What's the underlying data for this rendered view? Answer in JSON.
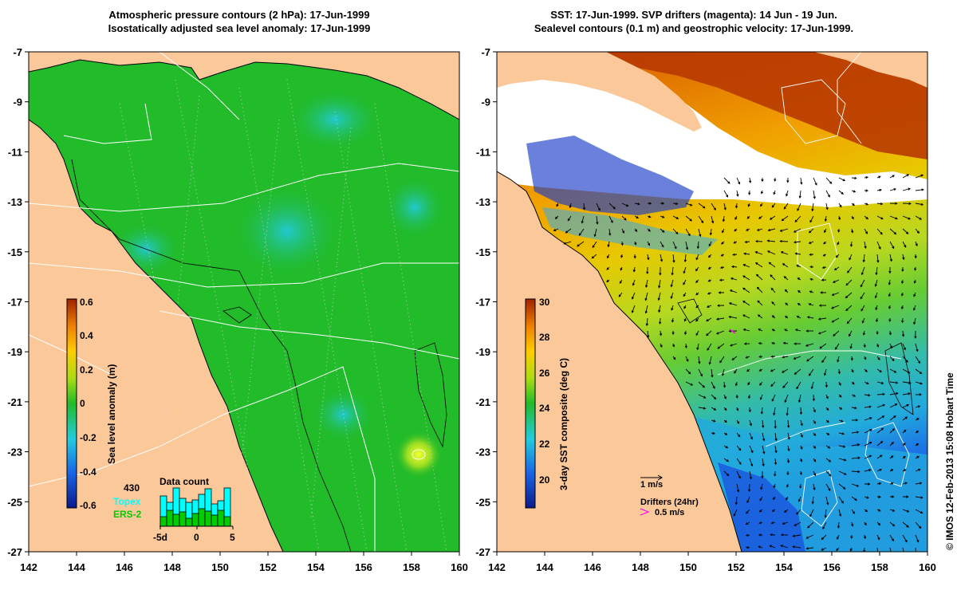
{
  "left_panel": {
    "title_line1": "Atmospheric pressure contours (2 hPa): 17-Jun-1999",
    "title_line2": "Isostatically adjusted sea level anomaly: 17-Jun-1999",
    "colorbar_label": "Sea level anomaly (m)",
    "colorbar_ticks": [
      "0.6",
      "0.4",
      "0.2",
      "0",
      "-0.2",
      "-0.4",
      "-0.6"
    ],
    "histogram": {
      "title": "Data count",
      "max_count_label": "430",
      "legend_topex": "Topex",
      "legend_ers": "ERS-2",
      "topex_color": "#00ffff",
      "ers_color": "#00cc00",
      "x_ticks": [
        "-5d",
        "0",
        "5"
      ]
    }
  },
  "right_panel": {
    "title_line1": "SST: 17-Jun-1999. SVP drifters (magenta): 14 Jun - 19 Jun.",
    "title_line2": "Sealevel contours (0.1 m) and geostrophic velocity: 17-Jun-1999.",
    "colorbar_label": "3-day SST composite (deg C)",
    "colorbar_ticks": [
      "30",
      "28",
      "26",
      "24",
      "22",
      "20"
    ],
    "velocity_scale_label": "1 m/s",
    "drifter_label": "Drifters (24hr)",
    "drifter_speed_label": "0.5 m/s",
    "drifter_color": "#ff00ff"
  },
  "axes": {
    "x_ticks": [
      "142",
      "144",
      "146",
      "148",
      "150",
      "152",
      "154",
      "156",
      "158",
      "160"
    ],
    "y_ticks": [
      "-7",
      "-9",
      "-11",
      "-13",
      "-15",
      "-17",
      "-19",
      "-21",
      "-23",
      "-25",
      "-27"
    ]
  },
  "credit": "© IMOS 12-Feb-2013 15:08 Hobart Time",
  "colors": {
    "land": "#fbc89a",
    "sea_level_base": "#22bb2a",
    "sea_level_low": "#33ccbb",
    "sst_warm": "#b03000",
    "sst_cool": "#22aadd",
    "cloud": "#ffffff"
  }
}
